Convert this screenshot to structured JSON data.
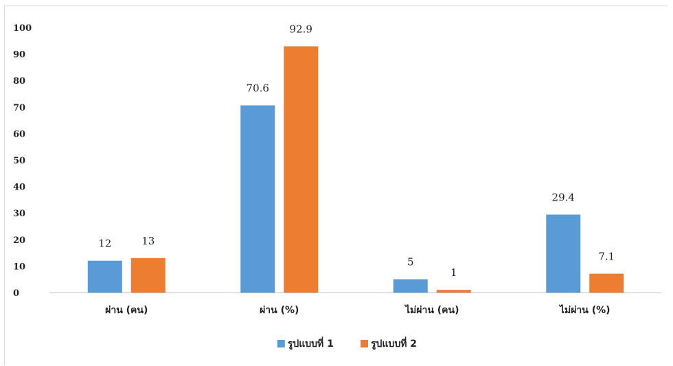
{
  "chart_data": {
    "type": "bar",
    "categories": [
      "ผ่าน (คน)",
      "ผ่าน (%)",
      "ไม่ผ่าน (คน)",
      "ไม่ผ่าน (%)"
    ],
    "series": [
      {
        "name": "รูปแบบที่ 1",
        "color": "#5b9bd5",
        "values": [
          12,
          70.6,
          5,
          29.4
        ]
      },
      {
        "name": "รูปแบบที่ 2",
        "color": "#ed7d31",
        "values": [
          13,
          92.9,
          1,
          7.1
        ]
      }
    ],
    "ylim": [
      0,
      100
    ],
    "yticks": [
      0,
      10,
      20,
      30,
      40,
      50,
      60,
      70,
      80,
      90,
      100
    ],
    "grid": false,
    "legend": "bottom",
    "data_labels": true,
    "title": "",
    "xlabel": "",
    "ylabel": ""
  }
}
